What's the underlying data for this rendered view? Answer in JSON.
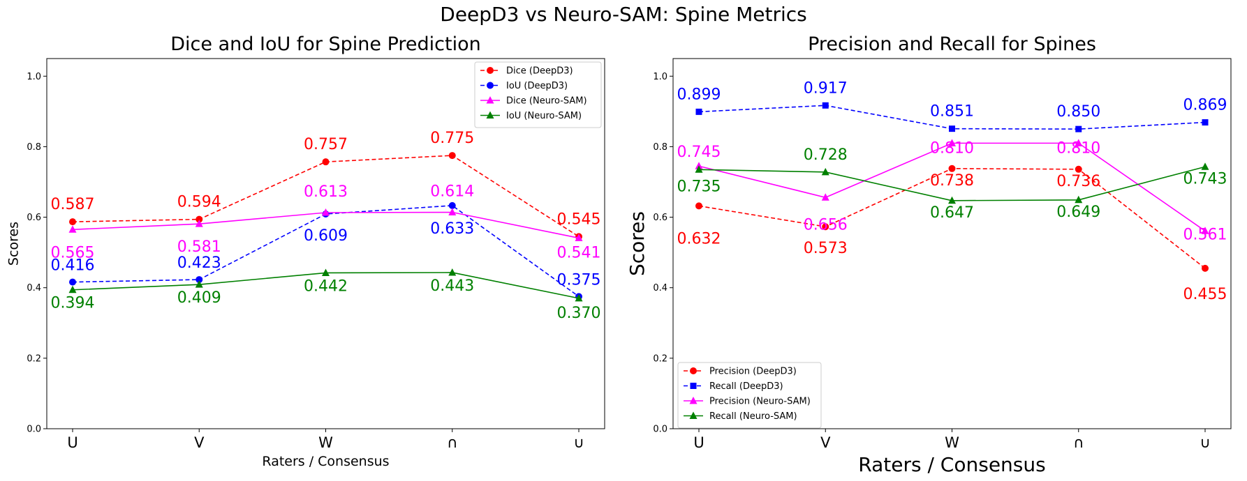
{
  "suptitle": "DeepD3 vs Neuro-SAM: Spine Metrics",
  "chart_data": [
    {
      "type": "line",
      "title": "Dice and IoU for Spine Prediction",
      "xlabel": "Raters / Consensus",
      "ylabel": "Scores",
      "categories": [
        "U",
        "V",
        "W",
        "∩",
        "∪"
      ],
      "ylim": [
        0.0,
        1.05
      ],
      "yticks": [
        "0.0",
        "0.2",
        "0.4",
        "0.6",
        "0.8",
        "1.0"
      ],
      "grid": false,
      "legend_position": "upper-right",
      "series": [
        {
          "name": "Dice (DeepD3)",
          "values": [
            0.587,
            0.594,
            0.757,
            0.775,
            0.545
          ],
          "labels": [
            "0.587",
            "0.594",
            "0.757",
            "0.775",
            "0.545"
          ],
          "color": "#ff0000",
          "dash": true,
          "marker": "circle",
          "label_pos": "above"
        },
        {
          "name": "IoU (DeepD3)",
          "values": [
            0.416,
            0.423,
            0.609,
            0.633,
            0.375
          ],
          "labels": [
            "0.416",
            "0.423",
            "0.609",
            "0.633",
            "0.375"
          ],
          "color": "#0000ff",
          "dash": true,
          "marker": "circle",
          "label_pos": "mixed"
        },
        {
          "name": "Dice (Neuro-SAM)",
          "values": [
            0.565,
            0.581,
            0.613,
            0.614,
            0.541
          ],
          "labels": [
            "0.565",
            "0.581",
            "0.613",
            "0.614",
            "0.541"
          ],
          "color": "#ff00ff",
          "dash": false,
          "marker": "triangle",
          "label_pos": "mixed"
        },
        {
          "name": "IoU (Neuro-SAM)",
          "values": [
            0.394,
            0.409,
            0.442,
            0.443,
            0.37
          ],
          "labels": [
            "0.394",
            "0.409",
            "0.442",
            "0.443",
            "0.370"
          ],
          "color": "#008000",
          "dash": false,
          "marker": "triangle",
          "label_pos": "below"
        }
      ]
    },
    {
      "type": "line",
      "title": "Precision and Recall for Spines",
      "xlabel": "Raters / Consensus",
      "ylabel": "Scores",
      "categories": [
        "U",
        "V",
        "W",
        "∩",
        "∪"
      ],
      "ylim": [
        0.0,
        1.05
      ],
      "yticks": [
        "0.0",
        "0.2",
        "0.4",
        "0.6",
        "0.8",
        "1.0"
      ],
      "grid": false,
      "legend_position": "lower-left",
      "series": [
        {
          "name": "Precision (DeepD3)",
          "values": [
            0.632,
            0.573,
            0.738,
            0.736,
            0.455
          ],
          "labels": [
            "0.632",
            "0.573",
            "0.738",
            "0.736",
            "0.455"
          ],
          "color": "#ff0000",
          "dash": true,
          "marker": "circle",
          "label_pos": "below"
        },
        {
          "name": "Recall (DeepD3)",
          "values": [
            0.899,
            0.917,
            0.851,
            0.85,
            0.869
          ],
          "labels": [
            "0.899",
            "0.917",
            "0.851",
            "0.850",
            "0.869"
          ],
          "color": "#0000ff",
          "dash": true,
          "marker": "square",
          "label_pos": "above"
        },
        {
          "name": "Precision (Neuro-SAM)",
          "values": [
            0.745,
            0.656,
            0.81,
            0.81,
            0.561
          ],
          "labels": [
            "0.745",
            "0.656",
            "0.810",
            "0.810",
            "0.561"
          ],
          "color": "#ff00ff",
          "dash": false,
          "marker": "triangle",
          "label_pos": "mixed"
        },
        {
          "name": "Recall (Neuro-SAM)",
          "values": [
            0.735,
            0.728,
            0.647,
            0.649,
            0.743
          ],
          "labels": [
            "0.735",
            "0.728",
            "0.647",
            "0.649",
            "0.743"
          ],
          "color": "#008000",
          "dash": false,
          "marker": "triangle",
          "label_pos": "mixed"
        }
      ]
    }
  ]
}
